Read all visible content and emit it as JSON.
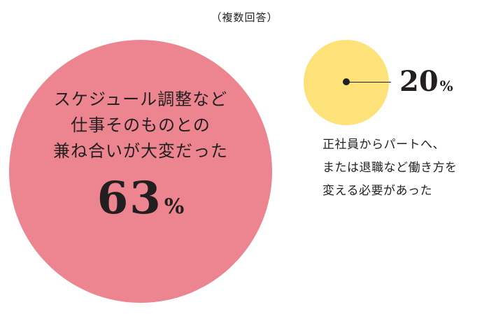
{
  "note": "（複数回答）",
  "chart_data": {
    "type": "bubble",
    "unit": "%",
    "items": [
      {
        "label_lines": [
          "スケジュール調整など",
          "仕事そのものとの",
          "兼ね合いが大変だった"
        ],
        "value": 63,
        "value_text": "63",
        "pct": "%",
        "color": "#ec8590"
      },
      {
        "label_lines": [
          "正社員からパートへ、",
          "または退職など働き方を",
          "変える必要があった"
        ],
        "value": 20,
        "value_text": "20",
        "pct": "%",
        "color": "#fde27a"
      }
    ]
  }
}
